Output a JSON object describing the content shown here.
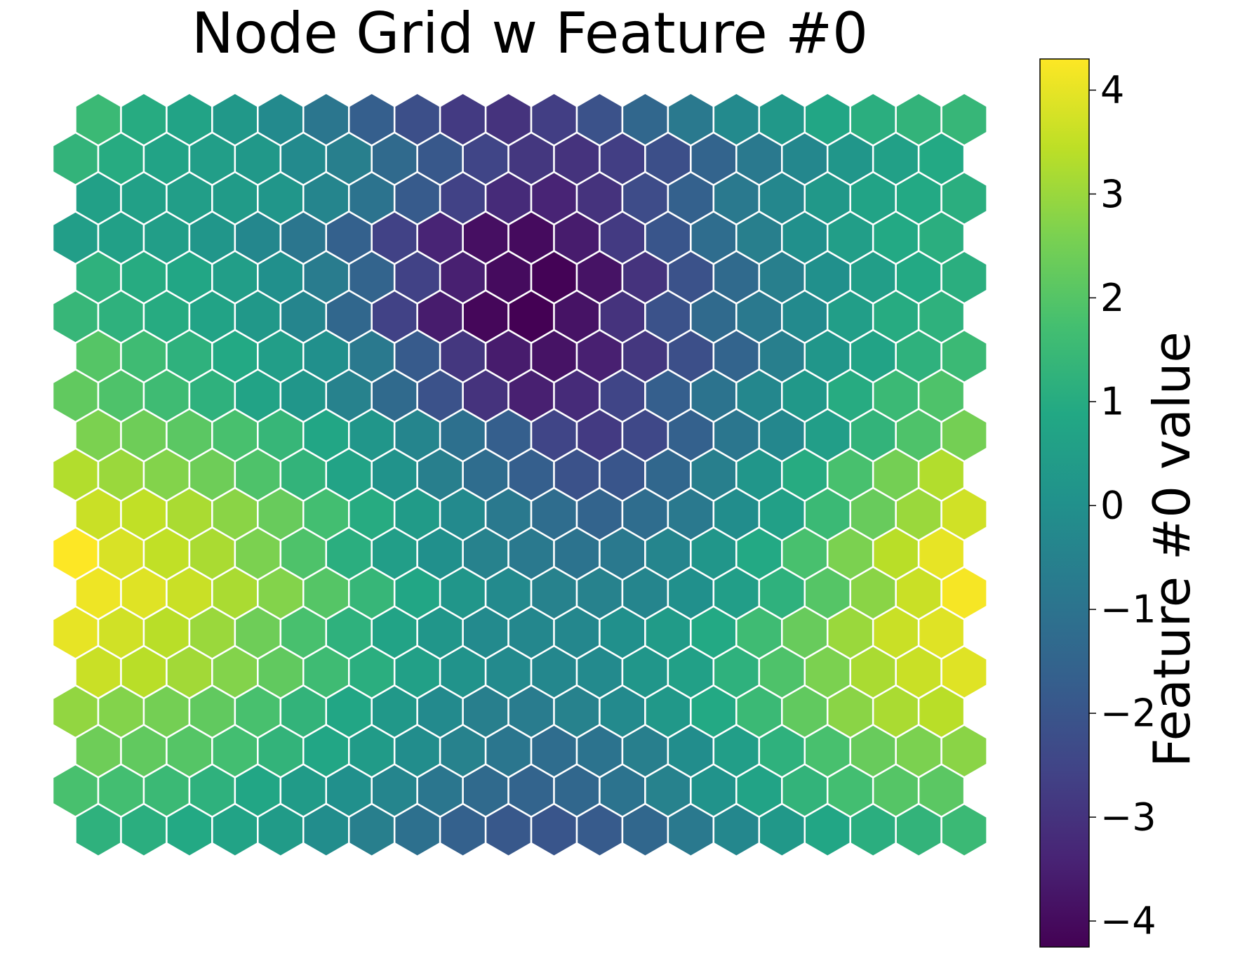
{
  "chart_data": {
    "type": "heatmap",
    "title": "Node Grid w Feature #0",
    "layout": "hexagonal",
    "rows": 19,
    "cols": 20,
    "colormap": "viridis",
    "colorbar": {
      "label": "Feature #0 value",
      "vmin": -4.25,
      "vmax": 4.3,
      "ticks": [
        -4,
        -3,
        -2,
        -1,
        0,
        1,
        2,
        3,
        4
      ],
      "tick_labels": [
        "−4",
        "−3",
        "−2",
        "−1",
        "0",
        "1",
        "2",
        "3",
        "4"
      ]
    },
    "values": [
      [
        1.5,
        1.0,
        0.7,
        0.3,
        -0.2,
        -0.9,
        -1.7,
        -2.2,
        -2.8,
        -3.0,
        -2.7,
        -2.1,
        -1.4,
        -0.8,
        -0.2,
        0.3,
        0.8,
        1.1,
        1.3,
        1.4
      ],
      [
        1.3,
        1.0,
        0.7,
        0.5,
        0.3,
        -0.2,
        -0.6,
        -1.3,
        -1.9,
        -2.5,
        -2.9,
        -3.0,
        -2.7,
        -2.2,
        -1.5,
        -0.8,
        -0.3,
        0.2,
        0.6,
        0.9
      ],
      [
        0.6,
        0.6,
        0.5,
        0.4,
        0.2,
        -0.4,
        -1.0,
        -1.8,
        -2.6,
        -3.2,
        -3.4,
        -3.0,
        -2.3,
        -1.6,
        -0.8,
        -0.3,
        0.3,
        0.7,
        0.9,
        1.1
      ],
      [
        0.5,
        0.6,
        0.5,
        0.2,
        -0.3,
        -0.9,
        -1.6,
        -2.6,
        -3.4,
        -3.9,
        -4.0,
        -3.6,
        -2.8,
        -2.0,
        -1.2,
        -0.6,
        0.0,
        0.5,
        0.9,
        1.1
      ],
      [
        1.2,
        1.0,
        0.8,
        0.5,
        0.0,
        -0.7,
        -1.5,
        -2.6,
        -3.5,
        -4.0,
        -4.2,
        -3.8,
        -3.0,
        -2.1,
        -1.3,
        -0.6,
        0.0,
        0.5,
        0.9,
        1.1
      ],
      [
        1.4,
        1.2,
        1.0,
        0.7,
        0.3,
        -0.4,
        -1.4,
        -2.6,
        -3.6,
        -4.1,
        -4.25,
        -3.8,
        -3.0,
        -2.1,
        -1.3,
        -0.8,
        -0.2,
        0.5,
        1.0,
        1.2
      ],
      [
        2.0,
        1.6,
        1.2,
        0.9,
        0.5,
        0.0,
        -0.8,
        -1.8,
        -2.9,
        -3.6,
        -3.8,
        -3.5,
        -2.9,
        -2.2,
        -1.5,
        -0.6,
        0.2,
        0.7,
        1.2,
        1.5
      ],
      [
        2.2,
        1.9,
        1.6,
        1.2,
        0.7,
        0.2,
        -0.5,
        -1.3,
        -2.1,
        -3.0,
        -3.5,
        -3.2,
        -2.5,
        -1.7,
        -1.0,
        -0.3,
        0.3,
        1.0,
        1.5,
        1.9
      ],
      [
        2.6,
        2.4,
        2.1,
        1.8,
        1.4,
        0.8,
        0.2,
        -0.4,
        -1.1,
        -1.7,
        -2.5,
        -2.8,
        -2.4,
        -1.6,
        -0.9,
        -0.3,
        0.5,
        1.3,
        1.9,
        2.5
      ],
      [
        3.3,
        3.0,
        2.7,
        2.4,
        1.9,
        1.3,
        0.7,
        0.1,
        -0.6,
        -1.2,
        -1.7,
        -2.1,
        -2.0,
        -1.4,
        -0.6,
        0.2,
        1.0,
        1.8,
        2.5,
        3.3
      ],
      [
        3.6,
        3.5,
        3.2,
        2.8,
        2.3,
        1.7,
        1.0,
        0.4,
        -0.2,
        -0.8,
        -1.2,
        -1.5,
        -1.2,
        -0.8,
        -0.1,
        0.6,
        1.5,
        2.3,
        3.0,
        3.7
      ],
      [
        4.3,
        3.8,
        3.5,
        3.2,
        2.6,
        1.9,
        1.1,
        0.5,
        0.0,
        -0.5,
        -0.8,
        -1.0,
        -0.8,
        -0.4,
        0.2,
        0.9,
        1.8,
        2.6,
        3.4,
        4.0
      ],
      [
        4.1,
        3.9,
        3.6,
        3.2,
        2.7,
        2.0,
        1.4,
        0.8,
        0.2,
        -0.2,
        -0.5,
        -0.5,
        -0.4,
        0.0,
        0.5,
        1.2,
        2.0,
        2.8,
        3.6,
        4.2
      ],
      [
        4.0,
        3.7,
        3.4,
        3.0,
        2.4,
        1.8,
        1.2,
        0.7,
        0.2,
        -0.2,
        -0.3,
        -0.3,
        0.0,
        0.4,
        0.9,
        1.6,
        2.3,
        3.0,
        3.6,
        3.9
      ],
      [
        3.6,
        3.4,
        3.1,
        2.7,
        2.2,
        1.6,
        1.1,
        0.6,
        0.1,
        -0.2,
        -0.3,
        -0.2,
        0.2,
        0.6,
        1.2,
        1.9,
        2.6,
        3.2,
        3.6,
        3.9
      ],
      [
        2.9,
        2.7,
        2.5,
        2.2,
        1.8,
        1.3,
        0.8,
        0.3,
        -0.2,
        -0.6,
        -0.7,
        -0.5,
        -0.2,
        0.3,
        0.9,
        1.5,
        2.2,
        2.8,
        3.2,
        3.4
      ],
      [
        2.4,
        2.2,
        2.0,
        1.7,
        1.3,
        0.8,
        0.4,
        -0.1,
        -0.5,
        -0.9,
        -1.2,
        -1.0,
        -0.6,
        -0.1,
        0.5,
        1.2,
        1.8,
        2.3,
        2.6,
        2.8
      ],
      [
        1.8,
        1.7,
        1.5,
        1.2,
        0.8,
        0.4,
        0.0,
        -0.4,
        -0.9,
        -1.3,
        -1.5,
        -1.4,
        -1.0,
        -0.5,
        0.1,
        0.7,
        1.3,
        1.7,
        2.0,
        2.1
      ],
      [
        1.2,
        1.1,
        0.9,
        0.7,
        0.4,
        -0.1,
        -0.6,
        -1.1,
        -1.6,
        -1.9,
        -2.0,
        -1.8,
        -1.4,
        -0.8,
        -0.3,
        0.3,
        0.8,
        1.1,
        1.3,
        1.5
      ]
    ]
  }
}
